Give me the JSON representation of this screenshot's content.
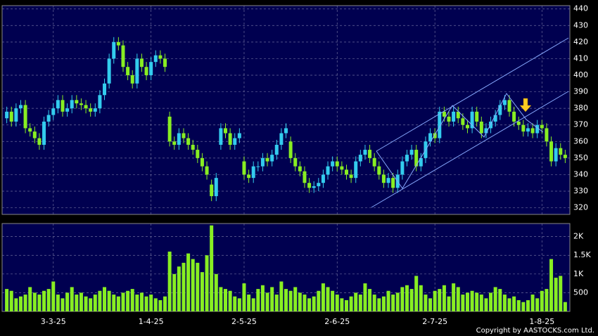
{
  "chart_data": {
    "type": "candlestick",
    "copyright": "Copyright by AASTOCKS.com Ltd.",
    "up_color": "#33ccee",
    "down_color": "#88ee22",
    "volume_color": "#88ee22",
    "grid": true,
    "xlim": [
      -1,
      121
    ],
    "xticks": [
      {
        "value": 10,
        "label": "3-3-25"
      },
      {
        "value": 31,
        "label": "1-4-25"
      },
      {
        "value": 51,
        "label": "2-5-25"
      },
      {
        "value": 71,
        "label": "2-6-25"
      },
      {
        "value": 92,
        "label": "2-7-25"
      },
      {
        "value": 115,
        "label": "1-8-25"
      }
    ],
    "ylim": [
      316,
      442
    ],
    "yticks": [
      320,
      330,
      340,
      350,
      360,
      370,
      380,
      390,
      400,
      410,
      420,
      430,
      440
    ],
    "volume_ylim": [
      0,
      2350
    ],
    "volume_yticks": [
      {
        "value": 500,
        "label": "500"
      },
      {
        "value": 1000,
        "label": "1K"
      },
      {
        "value": 1500,
        "label": "1.5K"
      },
      {
        "value": 2000,
        "label": "2K"
      }
    ],
    "open": [
      374,
      378,
      372,
      380,
      382,
      368,
      366,
      362,
      358,
      372,
      376,
      380,
      385,
      378,
      380,
      385,
      383,
      382,
      380,
      378,
      380,
      388,
      395,
      410,
      420,
      418,
      405,
      400,
      395,
      410,
      405,
      400,
      408,
      412,
      410,
      375,
      360,
      358,
      365,
      362,
      358,
      355,
      350,
      345,
      334,
      327,
      358,
      368,
      365,
      358,
      362,
      348,
      340,
      338,
      345,
      345,
      350,
      348,
      352,
      358,
      365,
      360,
      350,
      345,
      342,
      335,
      332,
      333,
      335,
      340,
      345,
      348,
      345,
      343,
      340,
      338,
      348,
      352,
      355,
      350,
      345,
      340,
      335,
      338,
      332,
      340,
      348,
      352,
      355,
      345,
      350,
      360,
      365,
      362,
      378,
      375,
      372,
      378,
      374,
      370,
      368,
      378,
      372,
      365,
      368,
      372,
      376,
      382,
      385,
      378,
      372,
      370,
      366,
      368,
      365,
      370,
      368,
      360,
      348,
      356,
      352
    ],
    "high": [
      381,
      381,
      383,
      385,
      385,
      371,
      369,
      365,
      375,
      379,
      383,
      388,
      388,
      383,
      388,
      388,
      386,
      385,
      383,
      383,
      391,
      398,
      413,
      423,
      423,
      421,
      408,
      403,
      413,
      413,
      408,
      411,
      415,
      415,
      413,
      378,
      363,
      368,
      368,
      365,
      361,
      358,
      353,
      348,
      337,
      341,
      371,
      371,
      368,
      365,
      368,
      351,
      343,
      348,
      348,
      353,
      353,
      355,
      361,
      368,
      371,
      363,
      353,
      348,
      345,
      338,
      336,
      338,
      343,
      348,
      351,
      351,
      348,
      346,
      343,
      351,
      355,
      358,
      358,
      353,
      348,
      343,
      341,
      341,
      343,
      351,
      355,
      358,
      358,
      353,
      363,
      368,
      368,
      381,
      381,
      378,
      381,
      381,
      377,
      373,
      381,
      381,
      375,
      371,
      375,
      379,
      385,
      388,
      388,
      381,
      375,
      373,
      371,
      371,
      373,
      373,
      371,
      363,
      359,
      359,
      355
    ],
    "low": [
      371,
      369,
      369,
      377,
      365,
      363,
      359,
      355,
      355,
      369,
      373,
      377,
      375,
      375,
      377,
      380,
      379,
      377,
      375,
      375,
      377,
      385,
      392,
      407,
      415,
      402,
      397,
      392,
      392,
      402,
      397,
      397,
      405,
      407,
      402,
      357,
      355,
      355,
      359,
      355,
      352,
      347,
      342,
      337,
      324,
      324,
      355,
      362,
      355,
      355,
      359,
      337,
      335,
      335,
      342,
      342,
      345,
      345,
      349,
      355,
      362,
      347,
      342,
      339,
      332,
      329,
      329,
      330,
      332,
      337,
      342,
      342,
      340,
      337,
      335,
      335,
      345,
      349,
      347,
      342,
      337,
      332,
      332,
      329,
      329,
      337,
      345,
      349,
      342,
      342,
      347,
      357,
      359,
      359,
      372,
      369,
      369,
      371,
      367,
      365,
      365,
      369,
      362,
      362,
      365,
      369,
      373,
      379,
      375,
      369,
      367,
      363,
      363,
      362,
      362,
      365,
      357,
      345,
      345,
      349,
      347
    ],
    "close": [
      378,
      372,
      380,
      382,
      368,
      366,
      362,
      358,
      372,
      376,
      380,
      385,
      378,
      380,
      385,
      383,
      382,
      380,
      378,
      380,
      388,
      395,
      410,
      420,
      418,
      405,
      400,
      395,
      410,
      405,
      400,
      408,
      412,
      410,
      405,
      360,
      358,
      365,
      362,
      358,
      355,
      350,
      345,
      340,
      327,
      338,
      368,
      365,
      358,
      362,
      365,
      340,
      338,
      345,
      345,
      350,
      348,
      352,
      358,
      365,
      368,
      350,
      345,
      342,
      335,
      332,
      333,
      335,
      340,
      345,
      348,
      345,
      343,
      340,
      338,
      348,
      352,
      355,
      350,
      345,
      340,
      335,
      338,
      332,
      340,
      348,
      352,
      355,
      345,
      350,
      360,
      365,
      362,
      378,
      375,
      372,
      378,
      374,
      370,
      368,
      378,
      372,
      365,
      368,
      372,
      376,
      382,
      385,
      378,
      372,
      370,
      366,
      368,
      365,
      370,
      368,
      360,
      348,
      356,
      352,
      350
    ],
    "volume": [
      600,
      550,
      350,
      400,
      450,
      650,
      500,
      450,
      550,
      600,
      800,
      450,
      350,
      500,
      650,
      450,
      500,
      400,
      350,
      450,
      550,
      650,
      550,
      450,
      400,
      500,
      550,
      600,
      450,
      500,
      400,
      450,
      350,
      300,
      400,
      1600,
      1000,
      1200,
      1300,
      1550,
      1400,
      1300,
      1050,
      1500,
      2300,
      1000,
      650,
      600,
      550,
      400,
      350,
      750,
      450,
      350,
      600,
      700,
      500,
      650,
      450,
      800,
      600,
      550,
      650,
      500,
      450,
      350,
      400,
      550,
      750,
      650,
      550,
      450,
      350,
      300,
      400,
      500,
      450,
      750,
      600,
      450,
      350,
      400,
      550,
      450,
      500,
      650,
      700,
      600,
      950,
      700,
      450,
      350,
      550,
      600,
      700,
      400,
      750,
      650,
      450,
      500,
      550,
      500,
      450,
      350,
      500,
      650,
      600,
      450,
      350,
      400,
      300,
      250,
      300,
      450,
      350,
      550,
      600,
      1400,
      900,
      950,
      250
    ]
  }
}
